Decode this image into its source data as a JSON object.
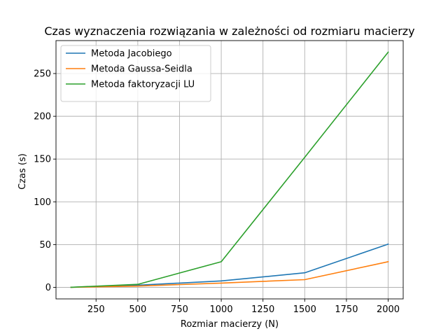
{
  "chart_data": {
    "type": "line",
    "title": "Czas wyznaczenia rozwiązania w zależności od rozmiaru macierzy",
    "xlabel": "Rozmiar macierzy (N)",
    "ylabel": "Czas (s)",
    "x": [
      100,
      500,
      1000,
      1500,
      2000
    ],
    "xlim": [
      10,
      2090
    ],
    "ylim": [
      -13.5,
      288.5
    ],
    "xticks": [
      250,
      500,
      750,
      1000,
      1250,
      1500,
      1750,
      2000
    ],
    "yticks": [
      0,
      50,
      100,
      150,
      200,
      250
    ],
    "grid": true,
    "legend_position": "top-left",
    "series": [
      {
        "name": "Metoda Jacobiego",
        "color": "#1f77b4",
        "values": [
          0.1,
          2.5,
          7.5,
          17,
          50.5
        ]
      },
      {
        "name": "Metoda Gaussa-Seidla",
        "color": "#ff7f0e",
        "values": [
          0.1,
          1.5,
          5,
          9,
          30
        ]
      },
      {
        "name": "Metoda faktoryzacji LU",
        "color": "#2ca02c",
        "values": [
          0.1,
          3.5,
          30,
          152,
          275
        ]
      }
    ]
  }
}
